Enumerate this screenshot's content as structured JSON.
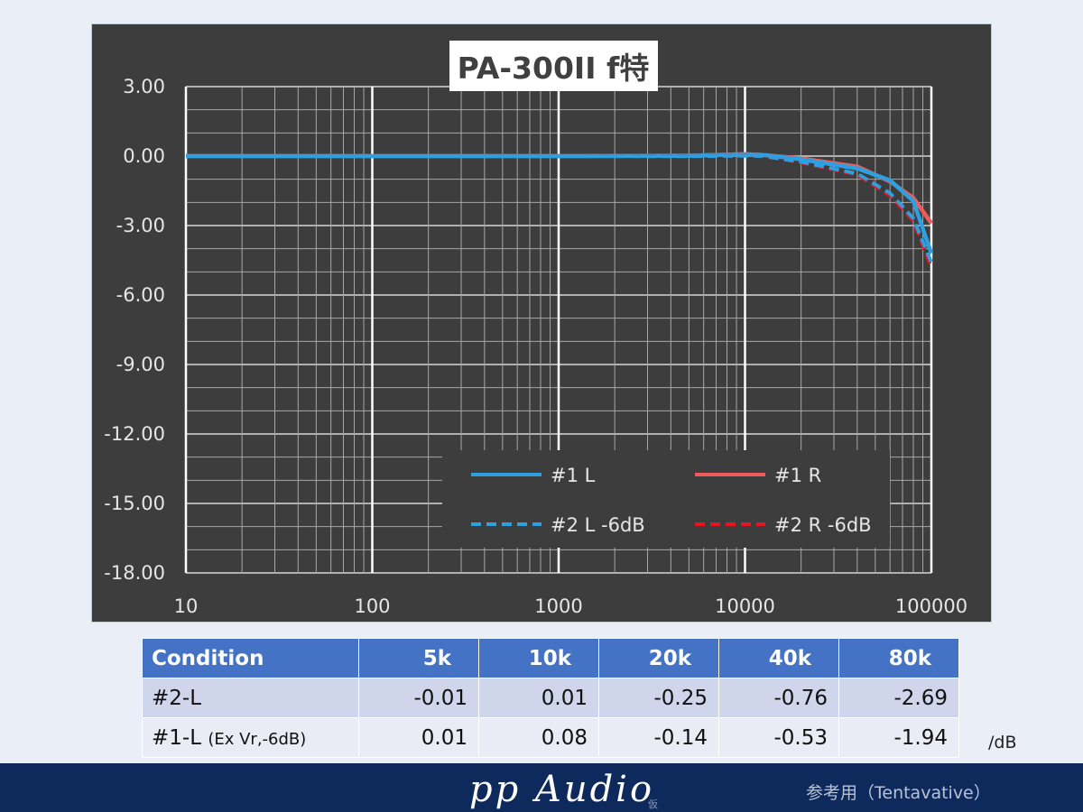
{
  "chart_data": {
    "type": "line",
    "title": "PA-300II f特",
    "x_scale": "log",
    "xlim": [
      10,
      100000
    ],
    "ylim": [
      -18,
      3
    ],
    "x_ticks": [
      10,
      100,
      1000,
      10000,
      100000
    ],
    "x_tick_labels": [
      "10",
      "100",
      "1000",
      "10000",
      "100000"
    ],
    "y_ticks": [
      3,
      0,
      -3,
      -6,
      -9,
      -12,
      -15,
      -18
    ],
    "y_tick_labels": [
      "3.00",
      "0.00",
      "-3.00",
      "-6.00",
      "-9.00",
      "-12.00",
      "-15.00",
      "-18.00"
    ],
    "grid": true,
    "legend_position": "bottom-right",
    "series": [
      {
        "name": "#1 L",
        "color": "#2e9fdf",
        "dash": "solid",
        "x": [
          10,
          100,
          1000,
          5000,
          10000,
          12500,
          20000,
          40000,
          60000,
          80000,
          100000
        ],
        "y": [
          0.0,
          0.0,
          0.0,
          0.01,
          0.08,
          0.05,
          -0.14,
          -0.53,
          -1.05,
          -1.94,
          -4.2
        ]
      },
      {
        "name": "#1 R",
        "color": "#f05a5a",
        "dash": "solid",
        "x": [
          10,
          100,
          1000,
          5000,
          10000,
          12500,
          20000,
          40000,
          60000,
          80000,
          100000
        ],
        "y": [
          0.0,
          0.0,
          0.0,
          0.02,
          0.08,
          0.05,
          -0.1,
          -0.45,
          -1.1,
          -1.8,
          -2.9
        ]
      },
      {
        "name": "#2 L -6dB",
        "color": "#2e9fdf",
        "dash": "dashed",
        "x": [
          10,
          100,
          1000,
          5000,
          10000,
          12500,
          20000,
          40000,
          60000,
          80000,
          100000
        ],
        "y": [
          0.0,
          0.0,
          0.0,
          -0.01,
          0.01,
          0.0,
          -0.25,
          -0.76,
          -1.6,
          -2.69,
          -4.6
        ]
      },
      {
        "name": "#2 R -6dB",
        "color": "#e8141e",
        "dash": "dashed",
        "x": [
          10,
          100,
          1000,
          5000,
          10000,
          12500,
          20000,
          40000,
          60000,
          80000,
          100000
        ],
        "y": [
          0.0,
          0.0,
          0.0,
          0.0,
          0.02,
          0.0,
          -0.28,
          -0.8,
          -1.7,
          -2.8,
          -4.8
        ]
      }
    ]
  },
  "table": {
    "headers": [
      "Condition",
      "5k",
      "10k",
      "20k",
      "40k",
      "80k"
    ],
    "rows": [
      {
        "condition": "#2-L",
        "note": "",
        "values": [
          "-0.01",
          "0.01",
          "-0.25",
          "-0.76",
          "-2.69"
        ]
      },
      {
        "condition": "#1-L",
        "note": "(Ex Vr,-6dB)",
        "values": [
          "0.01",
          "0.08",
          "-0.14",
          "-0.53",
          "-1.94"
        ]
      }
    ],
    "unit": "/dB"
  },
  "footer": {
    "brand": "pp Audio",
    "brand_tag": "仮",
    "reference": "参考用（Tentavative）"
  }
}
